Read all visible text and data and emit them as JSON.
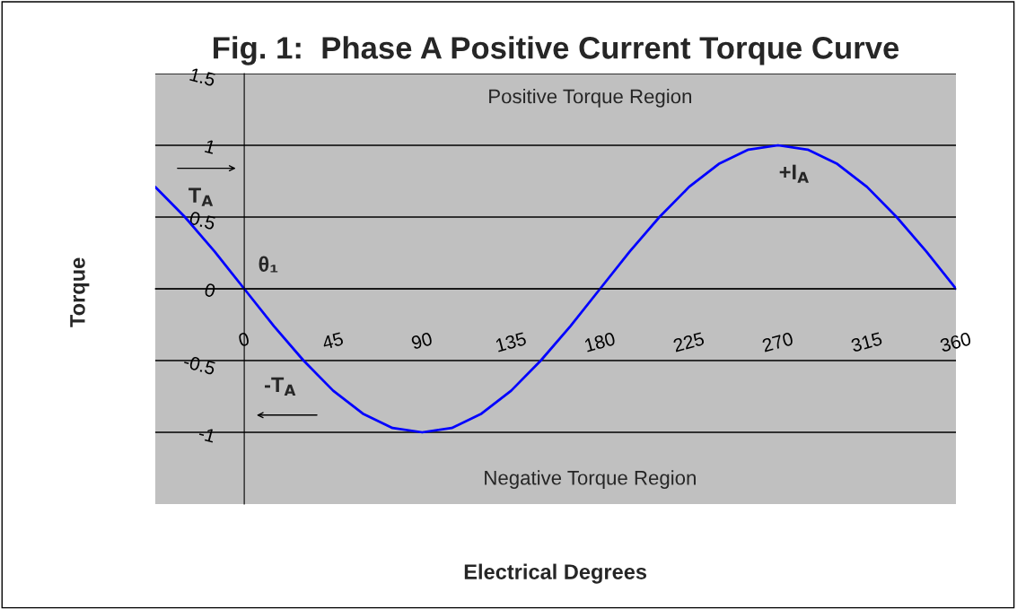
{
  "chart_data": {
    "type": "line",
    "title": "Fig. 1:  Phase A Positive Current Torque Curve",
    "xlabel": "Electrical Degrees",
    "ylabel": "Torque",
    "x": [
      -45,
      -30,
      -15,
      0,
      15,
      30,
      45,
      60,
      75,
      90,
      105,
      120,
      135,
      150,
      165,
      180,
      195,
      210,
      225,
      240,
      255,
      270,
      285,
      300,
      315,
      330,
      345,
      360
    ],
    "series": [
      {
        "color": "#0000ff",
        "values": [
          0.71,
          0.5,
          0.26,
          0,
          -0.26,
          -0.5,
          -0.71,
          -0.87,
          -0.97,
          -1,
          -0.97,
          -0.87,
          -0.71,
          -0.5,
          -0.26,
          0,
          0.26,
          0.5,
          0.71,
          0.87,
          0.97,
          1,
          0.97,
          0.87,
          0.71,
          0.5,
          0.26,
          0
        ]
      }
    ],
    "xlim": [
      -45,
      360
    ],
    "ylim": [
      -1.5,
      1.5
    ],
    "xticks": [
      0,
      45,
      90,
      135,
      180,
      225,
      270,
      315,
      360
    ],
    "yticks": [
      1.5,
      1,
      0.5,
      0,
      -0.5,
      -1
    ],
    "grid": "y",
    "marker": "none",
    "line_style": "solid",
    "annotations": [
      "Positive Torque Region",
      "Negative Torque Region",
      "T$_{A}$",
      "θ₁",
      "-T$_{A}$",
      "+I$_{A}$"
    ]
  }
}
